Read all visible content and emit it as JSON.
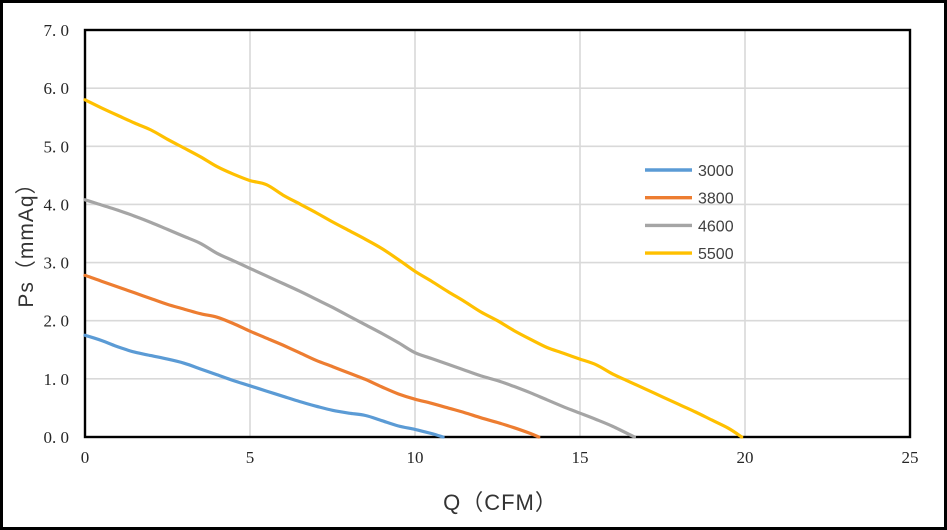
{
  "chart_data": {
    "type": "line",
    "title": "",
    "xlabel": "Q（CFM）",
    "ylabel": "Ps（mmAq）",
    "xlim": [
      0,
      25
    ],
    "ylim": [
      0,
      7
    ],
    "x_ticks": [
      0,
      5,
      10,
      15,
      20,
      25
    ],
    "x_tick_labels": [
      "0",
      "5",
      "10",
      "15",
      "20",
      "25"
    ],
    "y_ticks": [
      0,
      1,
      2,
      3,
      4,
      5,
      6,
      7
    ],
    "y_tick_labels": [
      "0. 0",
      "1. 0",
      "2. 0",
      "3. 0",
      "4. 0",
      "5. 0",
      "6. 0",
      "7. 0"
    ],
    "grid": true,
    "legend_position": "inside-right",
    "series": [
      {
        "name": "3000",
        "color": "#5B9BD5",
        "points": [
          [
            0,
            1.75
          ],
          [
            0.5,
            1.66
          ],
          [
            1,
            1.55
          ],
          [
            1.5,
            1.46
          ],
          [
            2,
            1.4
          ],
          [
            2.5,
            1.34
          ],
          [
            3,
            1.27
          ],
          [
            3.5,
            1.17
          ],
          [
            4,
            1.07
          ],
          [
            4.5,
            0.97
          ],
          [
            5,
            0.88
          ],
          [
            5.5,
            0.79
          ],
          [
            6,
            0.7
          ],
          [
            6.5,
            0.61
          ],
          [
            7,
            0.53
          ],
          [
            7.5,
            0.46
          ],
          [
            8,
            0.41
          ],
          [
            8.5,
            0.37
          ],
          [
            9,
            0.28
          ],
          [
            9.5,
            0.19
          ],
          [
            10,
            0.13
          ],
          [
            10.5,
            0.06
          ],
          [
            10.85,
            0
          ]
        ]
      },
      {
        "name": "3800",
        "color": "#ED7D31",
        "points": [
          [
            0,
            2.78
          ],
          [
            0.5,
            2.68
          ],
          [
            1,
            2.58
          ],
          [
            1.5,
            2.48
          ],
          [
            2,
            2.38
          ],
          [
            2.5,
            2.28
          ],
          [
            3,
            2.2
          ],
          [
            3.5,
            2.12
          ],
          [
            4,
            2.06
          ],
          [
            4.5,
            1.95
          ],
          [
            5,
            1.82
          ],
          [
            5.5,
            1.7
          ],
          [
            6,
            1.58
          ],
          [
            6.5,
            1.45
          ],
          [
            7,
            1.32
          ],
          [
            7.5,
            1.21
          ],
          [
            8,
            1.1
          ],
          [
            8.5,
            0.99
          ],
          [
            9,
            0.86
          ],
          [
            9.5,
            0.74
          ],
          [
            10,
            0.65
          ],
          [
            10.5,
            0.58
          ],
          [
            11,
            0.5
          ],
          [
            11.5,
            0.42
          ],
          [
            12,
            0.33
          ],
          [
            12.5,
            0.25
          ],
          [
            13,
            0.16
          ],
          [
            13.5,
            0.06
          ],
          [
            13.75,
            0
          ]
        ]
      },
      {
        "name": "4600",
        "color": "#A5A5A5",
        "points": [
          [
            0,
            4.08
          ],
          [
            0.5,
            3.99
          ],
          [
            1,
            3.9
          ],
          [
            1.5,
            3.8
          ],
          [
            2,
            3.69
          ],
          [
            2.5,
            3.57
          ],
          [
            3,
            3.45
          ],
          [
            3.5,
            3.33
          ],
          [
            4,
            3.16
          ],
          [
            4.5,
            3.03
          ],
          [
            5,
            2.9
          ],
          [
            5.5,
            2.77
          ],
          [
            6,
            2.64
          ],
          [
            6.5,
            2.51
          ],
          [
            7,
            2.37
          ],
          [
            7.5,
            2.23
          ],
          [
            8,
            2.08
          ],
          [
            8.5,
            1.93
          ],
          [
            9,
            1.78
          ],
          [
            9.5,
            1.62
          ],
          [
            10,
            1.45
          ],
          [
            10.5,
            1.35
          ],
          [
            11,
            1.25
          ],
          [
            11.5,
            1.15
          ],
          [
            12,
            1.05
          ],
          [
            12.5,
            0.97
          ],
          [
            13,
            0.87
          ],
          [
            13.5,
            0.76
          ],
          [
            14,
            0.64
          ],
          [
            14.5,
            0.52
          ],
          [
            15,
            0.41
          ],
          [
            15.5,
            0.3
          ],
          [
            16,
            0.18
          ],
          [
            16.65,
            0
          ]
        ]
      },
      {
        "name": "5500",
        "color": "#FFC000",
        "points": [
          [
            0,
            5.8
          ],
          [
            0.5,
            5.66
          ],
          [
            1,
            5.53
          ],
          [
            1.5,
            5.4
          ],
          [
            2,
            5.28
          ],
          [
            2.5,
            5.12
          ],
          [
            3,
            4.97
          ],
          [
            3.5,
            4.82
          ],
          [
            4,
            4.65
          ],
          [
            4.5,
            4.52
          ],
          [
            5,
            4.41
          ],
          [
            5.5,
            4.34
          ],
          [
            6,
            4.16
          ],
          [
            6.5,
            4.01
          ],
          [
            7,
            3.86
          ],
          [
            7.5,
            3.7
          ],
          [
            8,
            3.55
          ],
          [
            8.5,
            3.4
          ],
          [
            9,
            3.24
          ],
          [
            9.5,
            3.05
          ],
          [
            10,
            2.85
          ],
          [
            10.5,
            2.68
          ],
          [
            11,
            2.5
          ],
          [
            11.5,
            2.33
          ],
          [
            12,
            2.15
          ],
          [
            12.5,
            2.0
          ],
          [
            13,
            1.83
          ],
          [
            13.5,
            1.68
          ],
          [
            14,
            1.54
          ],
          [
            14.5,
            1.44
          ],
          [
            15,
            1.34
          ],
          [
            15.5,
            1.24
          ],
          [
            16,
            1.08
          ],
          [
            16.5,
            0.95
          ],
          [
            17,
            0.82
          ],
          [
            17.5,
            0.69
          ],
          [
            18,
            0.56
          ],
          [
            18.5,
            0.43
          ],
          [
            19,
            0.29
          ],
          [
            19.5,
            0.15
          ],
          [
            19.9,
            0
          ]
        ]
      }
    ]
  },
  "colors": {
    "gridline": "#D9D9D9",
    "plot_border": "#000000",
    "frame": "#000000",
    "background": "#FFFFFF",
    "tick_text": "#262626",
    "axis_title_text": "#333333",
    "legend_text": "#404040"
  }
}
